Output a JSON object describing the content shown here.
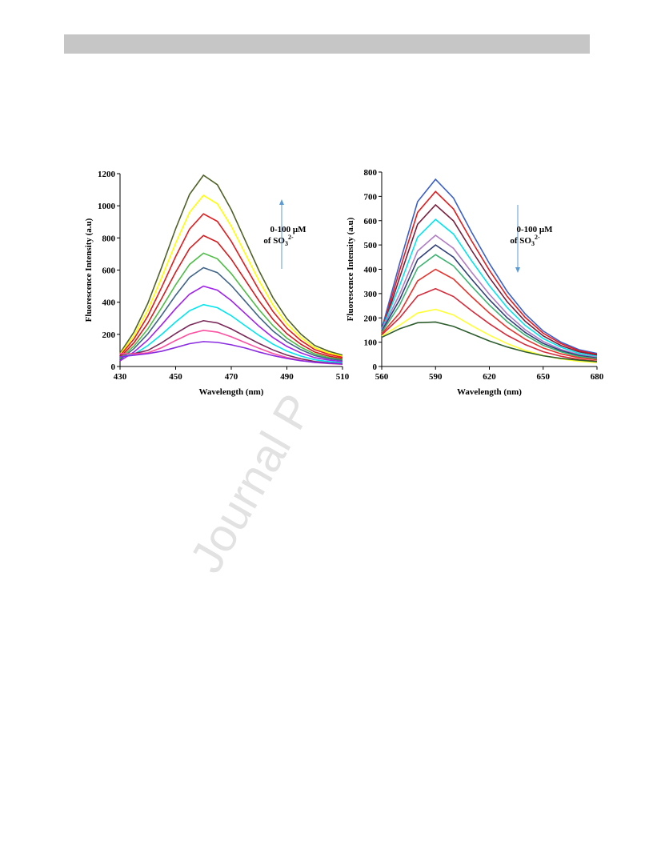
{
  "watermark": "Journal P",
  "chart_data": [
    {
      "type": "line",
      "xlabel": "Wavelength (nm)",
      "ylabel": "Fluorescence Intensity (a.u)",
      "annotation": [
        "0-100 μM",
        "of SO",
        "3",
        "2-"
      ],
      "x": [
        430,
        435,
        440,
        445,
        450,
        455,
        460,
        465,
        470,
        475,
        480,
        485,
        490,
        495,
        500,
        505,
        510
      ],
      "xlim": [
        430,
        510
      ],
      "xticks": [
        430,
        450,
        470,
        490,
        510
      ],
      "ylim": [
        0,
        1200
      ],
      "yticks": [
        0,
        200,
        400,
        600,
        800,
        1000,
        1200
      ],
      "series": [
        {
          "color": "#4f6228",
          "values": [
            83,
            214,
            393,
            619,
            857,
            1071,
            1190,
            1131,
            976,
            785,
            595,
            428,
            298,
            202,
            131,
            95,
            71
          ]
        },
        {
          "color": "#ffff00",
          "values": [
            75,
            192,
            351,
            554,
            767,
            959,
            1065,
            1012,
            873,
            703,
            533,
            383,
            266,
            181,
            117,
            85,
            64
          ]
        },
        {
          "color": "#e41a1c",
          "values": [
            67,
            171,
            314,
            494,
            684,
            855,
            950,
            903,
            779,
            627,
            475,
            342,
            238,
            162,
            105,
            76,
            57
          ]
        },
        {
          "color": "#d7191c",
          "values": [
            57,
            147,
            269,
            424,
            587,
            734,
            815,
            774,
            668,
            538,
            408,
            293,
            204,
            139,
            90,
            65,
            49
          ]
        },
        {
          "color": "#4dbd45",
          "values": [
            49,
            127,
            233,
            367,
            508,
            635,
            705,
            670,
            578,
            465,
            353,
            254,
            176,
            120,
            78,
            56,
            42
          ]
        },
        {
          "color": "#41658a",
          "values": [
            43,
            111,
            203,
            320,
            443,
            554,
            615,
            584,
            504,
            406,
            308,
            221,
            154,
            105,
            68,
            49,
            37
          ]
        },
        {
          "color": "#a020f0",
          "values": [
            35,
            90,
            165,
            260,
            360,
            450,
            500,
            475,
            410,
            330,
            250,
            180,
            125,
            85,
            55,
            40,
            30
          ]
        },
        {
          "color": "#00e5ee",
          "values": [
            60,
            75,
            130,
            200,
            277,
            347,
            385,
            366,
            316,
            254,
            193,
            139,
            96,
            65,
            42,
            31,
            23
          ]
        },
        {
          "color": "#7b2a5a",
          "values": [
            75,
            80,
            100,
            148,
            205,
            257,
            285,
            271,
            234,
            188,
            143,
            103,
            71,
            48,
            31,
            23,
            17
          ]
        },
        {
          "color": "#ff4fa0",
          "values": [
            80,
            78,
            85,
            117,
            162,
            203,
            225,
            214,
            185,
            149,
            113,
            81,
            56,
            38,
            25,
            18,
            14
          ]
        },
        {
          "color": "#8a2be2",
          "values": [
            60,
            70,
            80,
            95,
            118,
            142,
            155,
            150,
            135,
            115,
            90,
            68,
            50,
            36,
            26,
            20,
            15
          ]
        }
      ]
    },
    {
      "type": "line",
      "xlabel": "Wavelength (nm)",
      "ylabel": "Fluorescence Intensity (a.u)",
      "annotation": [
        "0-100 μM",
        "of SO",
        "3",
        "2-"
      ],
      "x": [
        560,
        570,
        580,
        590,
        600,
        610,
        620,
        630,
        640,
        650,
        660,
        670,
        680
      ],
      "xlim": [
        560,
        680
      ],
      "xticks": [
        560,
        590,
        620,
        650,
        680
      ],
      "ylim": [
        0,
        800
      ],
      "yticks": [
        0,
        100,
        200,
        300,
        400,
        500,
        600,
        700,
        800
      ],
      "series": [
        {
          "color": "#3a5fcd",
          "values": [
            154,
            424,
            678,
            770,
            693,
            554,
            424,
            308,
            216,
            146,
            100,
            69,
            54
          ]
        },
        {
          "color": "#e41a1c",
          "values": [
            144,
            396,
            634,
            720,
            648,
            518,
            396,
            288,
            202,
            137,
            94,
            65,
            50
          ]
        },
        {
          "color": "#7a1f3d",
          "values": [
            140,
            366,
            585,
            665,
            599,
            479,
            366,
            266,
            186,
            126,
            86,
            60,
            47
          ]
        },
        {
          "color": "#00e5ee",
          "values": [
            150,
            333,
            532,
            605,
            545,
            436,
            333,
            242,
            169,
            115,
            79,
            54,
            42
          ]
        },
        {
          "color": "#b07cc6",
          "values": [
            150,
            297,
            475,
            540,
            486,
            389,
            297,
            216,
            151,
            103,
            70,
            49,
            38
          ]
        },
        {
          "color": "#2f3f7a",
          "values": [
            145,
            275,
            440,
            500,
            450,
            360,
            275,
            200,
            140,
            95,
            65,
            45,
            35
          ]
        },
        {
          "color": "#3cb371",
          "values": [
            140,
            253,
            405,
            460,
            414,
            331,
            253,
            184,
            129,
            87,
            60,
            41,
            32
          ]
        },
        {
          "color": "#e8322b",
          "values": [
            135,
            220,
            352,
            400,
            360,
            288,
            220,
            160,
            112,
            76,
            52,
            36,
            28
          ]
        },
        {
          "color": "#d62a3a",
          "values": [
            130,
            200,
            290,
            320,
            288,
            230,
            176,
            128,
            90,
            61,
            42,
            29,
            22
          ]
        },
        {
          "color": "#ffff33",
          "values": [
            125,
            170,
            220,
            235,
            212,
            169,
            129,
            94,
            66,
            45,
            31,
            21,
            16
          ]
        },
        {
          "color": "#2e5e2e",
          "values": [
            120,
            155,
            180,
            183,
            165,
            135,
            105,
            80,
            60,
            44,
            33,
            26,
            20
          ]
        }
      ]
    }
  ]
}
